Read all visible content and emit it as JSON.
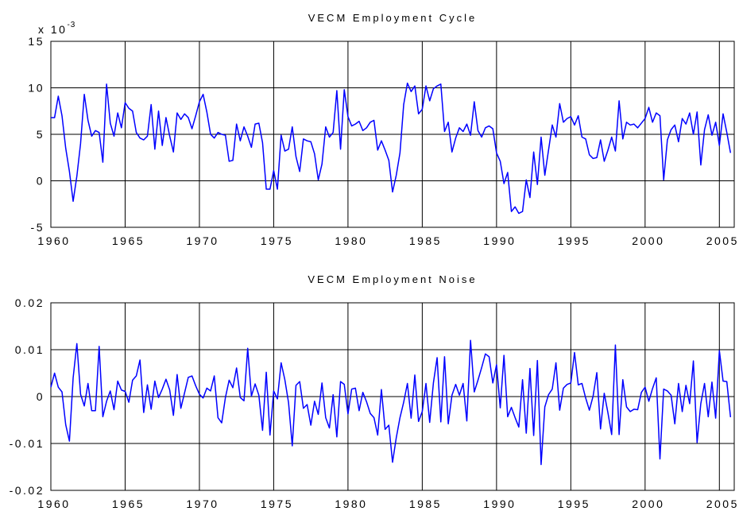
{
  "chart_data": [
    {
      "type": "line",
      "title": "VECM Employment Cycle",
      "annotation": {
        "text": "x 10",
        "exponent": "-3"
      },
      "color": "#0000ff",
      "grid": true,
      "xlim": [
        1960,
        2006
      ],
      "xticks": [
        1960,
        1965,
        1970,
        1975,
        1980,
        1985,
        1990,
        1995,
        2000,
        2005
      ],
      "ylim": [
        -5,
        15
      ],
      "yticks": [
        15,
        10,
        5,
        0,
        -5
      ],
      "x": [
        1960,
        1960.25,
        1960.5,
        1960.75,
        1961,
        1961.25,
        1961.5,
        1961.75,
        1962,
        1962.25,
        1962.5,
        1962.75,
        1963,
        1963.25,
        1963.5,
        1963.75,
        1964,
        1964.25,
        1964.5,
        1964.75,
        1965,
        1965.25,
        1965.5,
        1965.75,
        1966,
        1966.25,
        1966.5,
        1966.75,
        1967,
        1967.25,
        1967.5,
        1967.75,
        1968,
        1968.25,
        1968.5,
        1968.75,
        1969,
        1969.25,
        1969.5,
        1969.75,
        1970,
        1970.25,
        1970.5,
        1970.75,
        1971,
        1971.25,
        1971.5,
        1971.75,
        1972,
        1972.25,
        1972.5,
        1972.75,
        1973,
        1973.25,
        1973.5,
        1973.75,
        1974,
        1974.25,
        1974.5,
        1974.75,
        1975,
        1975.25,
        1975.5,
        1975.75,
        1976,
        1976.25,
        1976.5,
        1976.75,
        1977,
        1977.25,
        1977.5,
        1977.75,
        1978,
        1978.25,
        1978.5,
        1978.75,
        1979,
        1979.25,
        1979.5,
        1979.75,
        1980,
        1980.25,
        1980.5,
        1980.75,
        1981,
        1981.25,
        1981.5,
        1981.75,
        1982,
        1982.25,
        1982.5,
        1982.75,
        1983,
        1983.25,
        1983.5,
        1983.75,
        1984,
        1984.25,
        1984.5,
        1984.75,
        1985,
        1985.25,
        1985.5,
        1985.75,
        1986,
        1986.25,
        1986.5,
        1986.75,
        1987,
        1987.25,
        1987.5,
        1987.75,
        1988,
        1988.25,
        1988.5,
        1988.75,
        1989,
        1989.25,
        1989.5,
        1989.75,
        1990,
        1990.25,
        1990.5,
        1990.75,
        1991,
        1991.25,
        1991.5,
        1991.75,
        1992,
        1992.25,
        1992.5,
        1992.75,
        1993,
        1993.25,
        1993.5,
        1993.75,
        1994,
        1994.25,
        1994.5,
        1994.75,
        1995,
        1995.25,
        1995.5,
        1995.75,
        1996,
        1996.25,
        1996.5,
        1996.75,
        1997,
        1997.25,
        1997.5,
        1997.75,
        1998,
        1998.25,
        1998.5,
        1998.75,
        1999,
        1999.25,
        1999.5,
        1999.75,
        2000,
        2000.25,
        2000.5,
        2000.75,
        2001,
        2001.25,
        2001.5,
        2001.75,
        2002,
        2002.25,
        2002.5,
        2002.75,
        2003,
        2003.25,
        2003.5,
        2003.75,
        2004,
        2004.25,
        2004.5,
        2004.75,
        2005,
        2005.25,
        2005.5,
        2005.75
      ],
      "values": [
        6.8,
        6.8,
        9.1,
        7,
        3.5,
        1,
        -2.2,
        0.5,
        4,
        9.3,
        6.5,
        4.8,
        5.4,
        5.2,
        2,
        10.4,
        6.2,
        4.8,
        7.3,
        5.7,
        8.4,
        7.8,
        7.5,
        5.2,
        4.6,
        4.4,
        4.8,
        8.2,
        3.4,
        7.5,
        3.8,
        6.8,
        4.8,
        3.1,
        7.3,
        6.6,
        7.2,
        6.8,
        5.6,
        7,
        8.5,
        9.3,
        7.4,
        5,
        4.6,
        5.2,
        5,
        4.9,
        2.1,
        2.2,
        6.1,
        4.3,
        5.8,
        4.8,
        3.6,
        6.1,
        6.2,
        4.1,
        -0.9,
        -0.9,
        1.1,
        -0.9,
        4.9,
        3.2,
        3.4,
        5.8,
        2.6,
        1,
        4.5,
        4.3,
        4.2,
        2.9,
        0.1,
        1.8,
        5.8,
        4.7,
        5.2,
        9.7,
        3.4,
        9.8,
        6.9,
        5.9,
        6.1,
        6.4,
        5.4,
        5.7,
        6.3,
        6.5,
        3.3,
        4.3,
        3.3,
        2.2,
        -1.2,
        0.6,
        3,
        8.2,
        10.5,
        9.6,
        10.2,
        7.2,
        7.7,
        10.2,
        8.6,
        9.9,
        10.2,
        10.4,
        5.3,
        6.3,
        3.1,
        4.6,
        5.7,
        5.3,
        6.1,
        4.9,
        8.5,
        5.4,
        4.7,
        5.7,
        5.9,
        5.6,
        3,
        2.1,
        -0.3,
        0.9,
        -3.3,
        -2.8,
        -3.5,
        -3.3,
        0.1,
        -1.8,
        3.1,
        -0.4,
        4.7,
        0.6,
        3.3,
        6,
        4.7,
        8.3,
        6.3,
        6.7,
        6.9,
        6,
        7,
        4.7,
        4.5,
        2.8,
        2.4,
        2.5,
        4.4,
        2.1,
        3.3,
        4.7,
        3.2,
        8.6,
        4.5,
        6.3,
        6,
        6.1,
        5.7,
        6.2,
        6.7,
        7.9,
        6.3,
        7.3,
        7,
        0.1,
        4.4,
        5.5,
        6,
        4.2,
        6.7,
        6.1,
        7.3,
        5,
        7.4,
        1.7,
        5.5,
        7.1,
        4.9,
        6.3,
        3.8,
        7.2,
        5.2,
        3
      ]
    },
    {
      "type": "line",
      "title": "VECM Employment Noise",
      "color": "#0000ff",
      "grid": true,
      "xlim": [
        1960,
        2006
      ],
      "xticks": [
        1960,
        1965,
        1970,
        1975,
        1980,
        1985,
        1990,
        1995,
        2000,
        2005
      ],
      "ylim": [
        -0.02,
        0.02
      ],
      "yticks": [
        0.02,
        0.01,
        0,
        -0.01,
        -0.02
      ],
      "x": [
        1960,
        1960.25,
        1960.5,
        1960.75,
        1961,
        1961.25,
        1961.5,
        1961.75,
        1962,
        1962.25,
        1962.5,
        1962.75,
        1963,
        1963.25,
        1963.5,
        1963.75,
        1964,
        1964.25,
        1964.5,
        1964.75,
        1965,
        1965.25,
        1965.5,
        1965.75,
        1966,
        1966.25,
        1966.5,
        1966.75,
        1967,
        1967.25,
        1967.5,
        1967.75,
        1968,
        1968.25,
        1968.5,
        1968.75,
        1969,
        1969.25,
        1969.5,
        1969.75,
        1970,
        1970.25,
        1970.5,
        1970.75,
        1971,
        1971.25,
        1971.5,
        1971.75,
        1972,
        1972.25,
        1972.5,
        1972.75,
        1973,
        1973.25,
        1973.5,
        1973.75,
        1974,
        1974.25,
        1974.5,
        1974.75,
        1975,
        1975.25,
        1975.5,
        1975.75,
        1976,
        1976.25,
        1976.5,
        1976.75,
        1977,
        1977.25,
        1977.5,
        1977.75,
        1978,
        1978.25,
        1978.5,
        1978.75,
        1979,
        1979.25,
        1979.5,
        1979.75,
        1980,
        1980.25,
        1980.5,
        1980.75,
        1981,
        1981.25,
        1981.5,
        1981.75,
        1982,
        1982.25,
        1982.5,
        1982.75,
        1983,
        1983.25,
        1983.5,
        1983.75,
        1984,
        1984.25,
        1984.5,
        1984.75,
        1985,
        1985.25,
        1985.5,
        1985.75,
        1986,
        1986.25,
        1986.5,
        1986.75,
        1987,
        1987.25,
        1987.5,
        1987.75,
        1988,
        1988.25,
        1988.5,
        1988.75,
        1989,
        1989.25,
        1989.5,
        1989.75,
        1990,
        1990.25,
        1990.5,
        1990.75,
        1991,
        1991.25,
        1991.5,
        1991.75,
        1992,
        1992.25,
        1992.5,
        1992.75,
        1993,
        1993.25,
        1993.5,
        1993.75,
        1994,
        1994.25,
        1994.5,
        1994.75,
        1995,
        1995.25,
        1995.5,
        1995.75,
        1996,
        1996.25,
        1996.5,
        1996.75,
        1997,
        1997.25,
        1997.5,
        1997.75,
        1998,
        1998.25,
        1998.5,
        1998.75,
        1999,
        1999.25,
        1999.5,
        1999.75,
        2000,
        2000.25,
        2000.5,
        2000.75,
        2001,
        2001.25,
        2001.5,
        2001.75,
        2002,
        2002.25,
        2002.5,
        2002.75,
        2003,
        2003.25,
        2003.5,
        2003.75,
        2004,
        2004.25,
        2004.5,
        2004.75,
        2005,
        2005.25,
        2005.5,
        2005.75
      ],
      "values": [
        0.002,
        0.005,
        0.002,
        0.001,
        -0.006,
        -0.0095,
        0.004,
        0.0113,
        0.0005,
        -0.002,
        0.0028,
        -0.003,
        -0.003,
        0.0107,
        -0.0043,
        -0.001,
        0.0012,
        -0.0028,
        0.0033,
        0.0014,
        0.0011,
        -0.0012,
        0.0035,
        0.0044,
        0.0078,
        -0.0034,
        0.0025,
        -0.0027,
        0.0033,
        -0.0002,
        0.0016,
        0.0037,
        0.0014,
        -0.004,
        0.0047,
        -0.0025,
        0.0008,
        0.0041,
        0.0044,
        0.0023,
        0.0005,
        -0.0003,
        0.0018,
        0.0012,
        0.0044,
        -0.0045,
        -0.0056,
        -0.0002,
        0.0035,
        0.0019,
        0.0061,
        -0.0002,
        -0.0009,
        0.0103,
        0.0001,
        0.0027,
        0.0003,
        -0.0072,
        0.0052,
        -0.0082,
        0.0012,
        -0.0005,
        0.0072,
        0.0036,
        -0.0013,
        -0.0105,
        0.0024,
        0.0032,
        -0.0025,
        -0.0017,
        -0.0061,
        -0.001,
        -0.0038,
        0.0029,
        -0.0045,
        -0.0067,
        0.0004,
        -0.0086,
        0.0032,
        0.0026,
        -0.0037,
        0.0016,
        0.0018,
        -0.003,
        0.0009,
        -0.0011,
        -0.0036,
        -0.0045,
        -0.0082,
        0.0015,
        -0.007,
        -0.0061,
        -0.014,
        -0.0088,
        -0.0045,
        -0.0012,
        0.0028,
        -0.0046,
        0.0046,
        -0.0053,
        -0.0032,
        0.0028,
        -0.0055,
        0.0029,
        0.0083,
        -0.0054,
        0.0085,
        -0.0058,
        0.0003,
        0.0026,
        0.0003,
        0.0028,
        -0.0052,
        0.012,
        0.001,
        0.0035,
        0.0062,
        0.0091,
        0.0085,
        0.0029,
        0.0068,
        -0.0024,
        0.0088,
        -0.0043,
        -0.0023,
        -0.0045,
        -0.0065,
        0.0036,
        -0.0078,
        0.006,
        -0.0083,
        0.0077,
        -0.0145,
        -0.0022,
        0.0004,
        0.0016,
        0.0072,
        -0.0029,
        0.0018,
        0.0026,
        0.0029,
        0.0094,
        0.0025,
        0.0028,
        -0.0003,
        -0.0029,
        0.0001,
        0.0051,
        -0.0069,
        0.0007,
        -0.0035,
        -0.0081,
        0.011,
        -0.0081,
        0.0036,
        -0.0022,
        -0.0032,
        -0.0027,
        -0.0028,
        0.0009,
        0.002,
        -0.001,
        0.0017,
        0.004,
        -0.0133,
        0.0016,
        0.0012,
        0.0003,
        -0.0058,
        0.0028,
        -0.0032,
        0.0024,
        -0.0015,
        0.0076,
        -0.0098,
        -0.0015,
        0.0028,
        -0.0043,
        0.0031,
        -0.0046,
        0.0098,
        0.0033,
        0.0032,
        -0.0044
      ]
    }
  ]
}
